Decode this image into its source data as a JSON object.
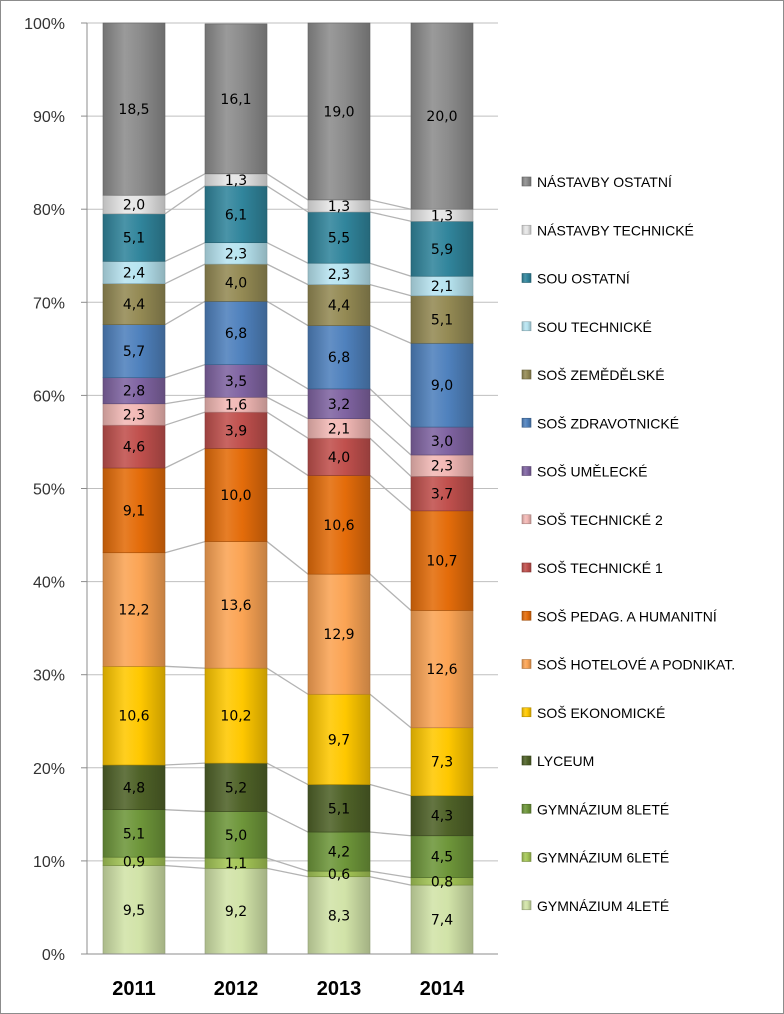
{
  "chart_data": {
    "type": "bar",
    "stacked": true,
    "percent": true,
    "categories": [
      "2011",
      "2012",
      "2013",
      "2014"
    ],
    "ylim": [
      0,
      100
    ],
    "yticks": [
      "0%",
      "10%",
      "20%",
      "30%",
      "40%",
      "50%",
      "60%",
      "70%",
      "80%",
      "90%",
      "100%"
    ],
    "grid": true,
    "legend_position": "right",
    "series": [
      {
        "name": "GYMNÁZIUM 4LETÉ",
        "color": "#d1e3a8",
        "values": [
          9.5,
          9.2,
          8.3,
          7.4
        ],
        "labels": [
          "9,5",
          "9,2",
          "8,3",
          "7,4"
        ]
      },
      {
        "name": "GYMNÁZIUM 6LETÉ",
        "color": "#a4c656",
        "values": [
          0.9,
          1.1,
          0.6,
          0.8
        ],
        "labels": [
          "0,9",
          "1,1",
          "0,6",
          "0,8"
        ]
      },
      {
        "name": "GYMNÁZIUM 8LETÉ",
        "color": "#6e963a",
        "values": [
          5.1,
          5.0,
          4.2,
          4.5
        ],
        "labels": [
          "5,1",
          "5,0",
          "4,2",
          "4,5"
        ]
      },
      {
        "name": "LYCEUM",
        "color": "#4f6228",
        "values": [
          4.8,
          5.2,
          5.1,
          4.3
        ],
        "labels": [
          "4,8",
          "5,2",
          "5,1",
          "4,3"
        ]
      },
      {
        "name": "SOŠ EKONOMICKÉ",
        "color": "#ffc800",
        "values": [
          10.6,
          10.2,
          9.7,
          7.3
        ],
        "labels": [
          "10,6",
          "10,2",
          "9,7",
          "7,3"
        ]
      },
      {
        "name": "SOŠ HOTELOVÉ A PODNIKAT.",
        "color": "#fba454",
        "values": [
          12.2,
          13.6,
          12.9,
          12.6
        ],
        "labels": [
          "12,2",
          "13,6",
          "12,9",
          "12,6"
        ]
      },
      {
        "name": "SOŠ PEDAG. A HUMANITNÍ",
        "color": "#e46c0a",
        "values": [
          9.1,
          10.0,
          10.6,
          10.7
        ],
        "labels": [
          "9,1",
          "10,0",
          "10,6",
          "10,7"
        ]
      },
      {
        "name": "SOŠ TECHNICKÉ 1",
        "color": "#c0504d",
        "values": [
          4.6,
          3.9,
          4.0,
          3.7
        ],
        "labels": [
          "4,6",
          "3,9",
          "4,0",
          "3,7"
        ]
      },
      {
        "name": "SOŠ TECHNICKÉ 2",
        "color": "#f2b8b5",
        "values": [
          2.3,
          1.6,
          2.1,
          2.3
        ],
        "labels": [
          "2,3",
          "1,6",
          "2,1",
          "2,3"
        ]
      },
      {
        "name": "SOŠ UMĚLECKÉ",
        "color": "#8064a2",
        "values": [
          2.8,
          3.5,
          3.2,
          3.0
        ],
        "labels": [
          "2,8",
          "3,5",
          "3,2",
          "3,0"
        ]
      },
      {
        "name": "SOŠ ZDRAVOTNICKÉ",
        "color": "#4f81bd",
        "values": [
          5.7,
          6.8,
          6.8,
          9.0
        ],
        "labels": [
          "5,7",
          "6,8",
          "6,8",
          "9,0"
        ]
      },
      {
        "name": "SOŠ ZEMĚDĚLSKÉ",
        "color": "#948a54",
        "values": [
          4.4,
          4.0,
          4.4,
          5.1
        ],
        "labels": [
          "4,4",
          "4,0",
          "4,4",
          "5,1"
        ]
      },
      {
        "name": "SOU TECHNICKÉ",
        "color": "#b7e4f0",
        "values": [
          2.4,
          2.3,
          2.3,
          2.1
        ],
        "labels": [
          "2,4",
          "2,3",
          "2,3",
          "2,1"
        ]
      },
      {
        "name": "SOU OSTATNÍ",
        "color": "#31859c",
        "values": [
          5.1,
          6.1,
          5.5,
          5.9
        ],
        "labels": [
          "5,1",
          "6,1",
          "5,5",
          "5,9"
        ]
      },
      {
        "name": "NÁSTAVBY TECHNICKÉ",
        "color": "#e6e6e6",
        "values": [
          2.0,
          1.3,
          1.3,
          1.3
        ],
        "labels": [
          "2,0",
          "1,3",
          "1,3",
          "1,3"
        ]
      },
      {
        "name": "NÁSTAVBY OSTATNÍ",
        "color": "#8c8c8c",
        "values": [
          18.5,
          16.1,
          19.0,
          20.0
        ],
        "labels": [
          "18,5",
          "16,1",
          "19,0",
          "20,0"
        ]
      }
    ]
  }
}
